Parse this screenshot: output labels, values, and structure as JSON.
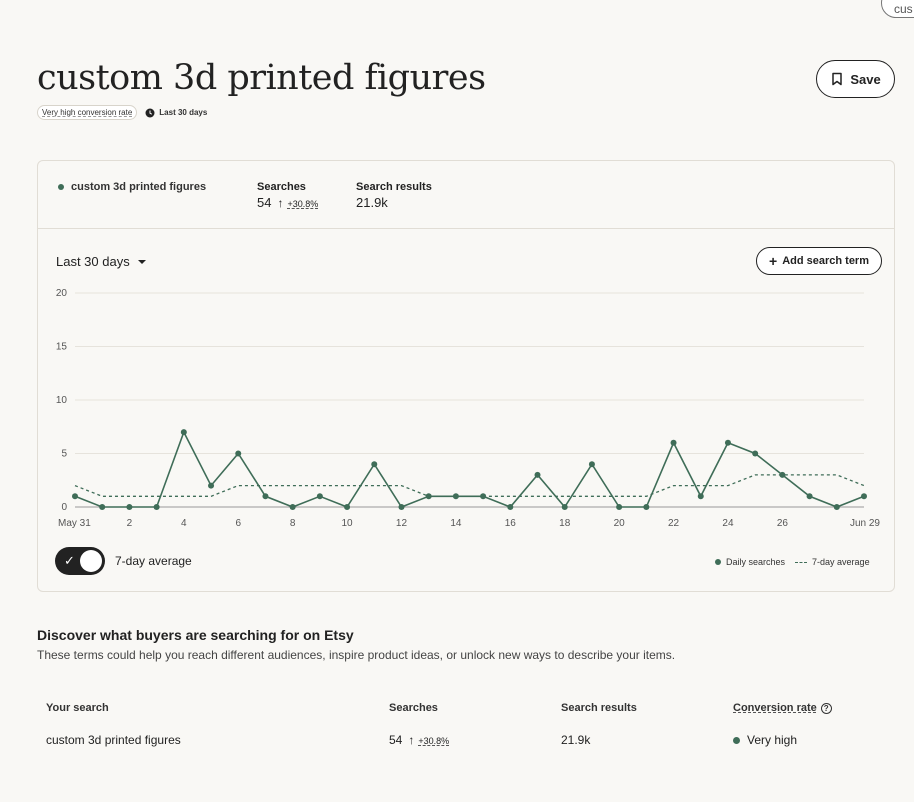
{
  "corner_tab": {
    "label": "cus"
  },
  "header": {
    "title": "custom 3d printed figures",
    "save_label": "Save",
    "conversion_badge": "Very high conversion rate",
    "period": "Last 30 days"
  },
  "summary": {
    "term": "custom 3d printed figures",
    "searches_label": "Searches",
    "searches_value": "54",
    "searches_trend": "+30.8%",
    "results_label": "Search results",
    "results_value": "21.9k"
  },
  "controls": {
    "range_label": "Last 30 days",
    "add_term_label": "Add search term",
    "toggle_label": "7-day average",
    "toggle_on": true
  },
  "chart_data": {
    "type": "line",
    "x": [
      "May 31",
      "Jun 1",
      "2",
      "3",
      "4",
      "5",
      "6",
      "7",
      "8",
      "9",
      "10",
      "11",
      "12",
      "13",
      "14",
      "15",
      "16",
      "17",
      "18",
      "19",
      "20",
      "21",
      "22",
      "23",
      "24",
      "25",
      "26",
      "27",
      "28",
      "Jun 29"
    ],
    "xtick_labels": [
      "May 31",
      "2",
      "4",
      "6",
      "8",
      "10",
      "12",
      "14",
      "16",
      "18",
      "20",
      "22",
      "24",
      "26",
      "Jun 29"
    ],
    "yticks": [
      0,
      5,
      10,
      15,
      20
    ],
    "ylim": [
      0,
      20
    ],
    "grid": true,
    "legend": "bottom-right",
    "series": [
      {
        "name": "Daily searches",
        "style": "solid",
        "color": "#3f6d58",
        "values": [
          1,
          0,
          0,
          0,
          7,
          2,
          5,
          1,
          0,
          1,
          0,
          4,
          0,
          1,
          1,
          1,
          0,
          3,
          0,
          4,
          0,
          0,
          6,
          1,
          6,
          5,
          3,
          1,
          0,
          1
        ]
      },
      {
        "name": "7-day average",
        "style": "dashed",
        "color": "#3f6d58",
        "values": [
          2,
          1,
          1,
          1,
          1,
          1,
          2,
          2,
          2,
          2,
          2,
          2,
          2,
          1,
          1,
          1,
          1,
          1,
          1,
          1,
          1,
          1,
          2,
          2,
          2,
          3,
          3,
          3,
          3,
          2
        ]
      }
    ]
  },
  "discover": {
    "title": "Discover what buyers are searching for on Etsy",
    "subtitle": "These terms could help you reach different audiences, inspire product ideas, or unlock new ways to describe your items."
  },
  "table": {
    "headers": {
      "search": "Your search",
      "searches": "Searches",
      "results": "Search results",
      "conversion": "Conversion rate"
    },
    "row": {
      "search": "custom 3d printed figures",
      "searches": "54",
      "trend": "+30.8%",
      "results": "21.9k",
      "conversion": "Very high"
    }
  },
  "colors": {
    "accent": "#3f6d58",
    "background": "#f9f8f5"
  }
}
